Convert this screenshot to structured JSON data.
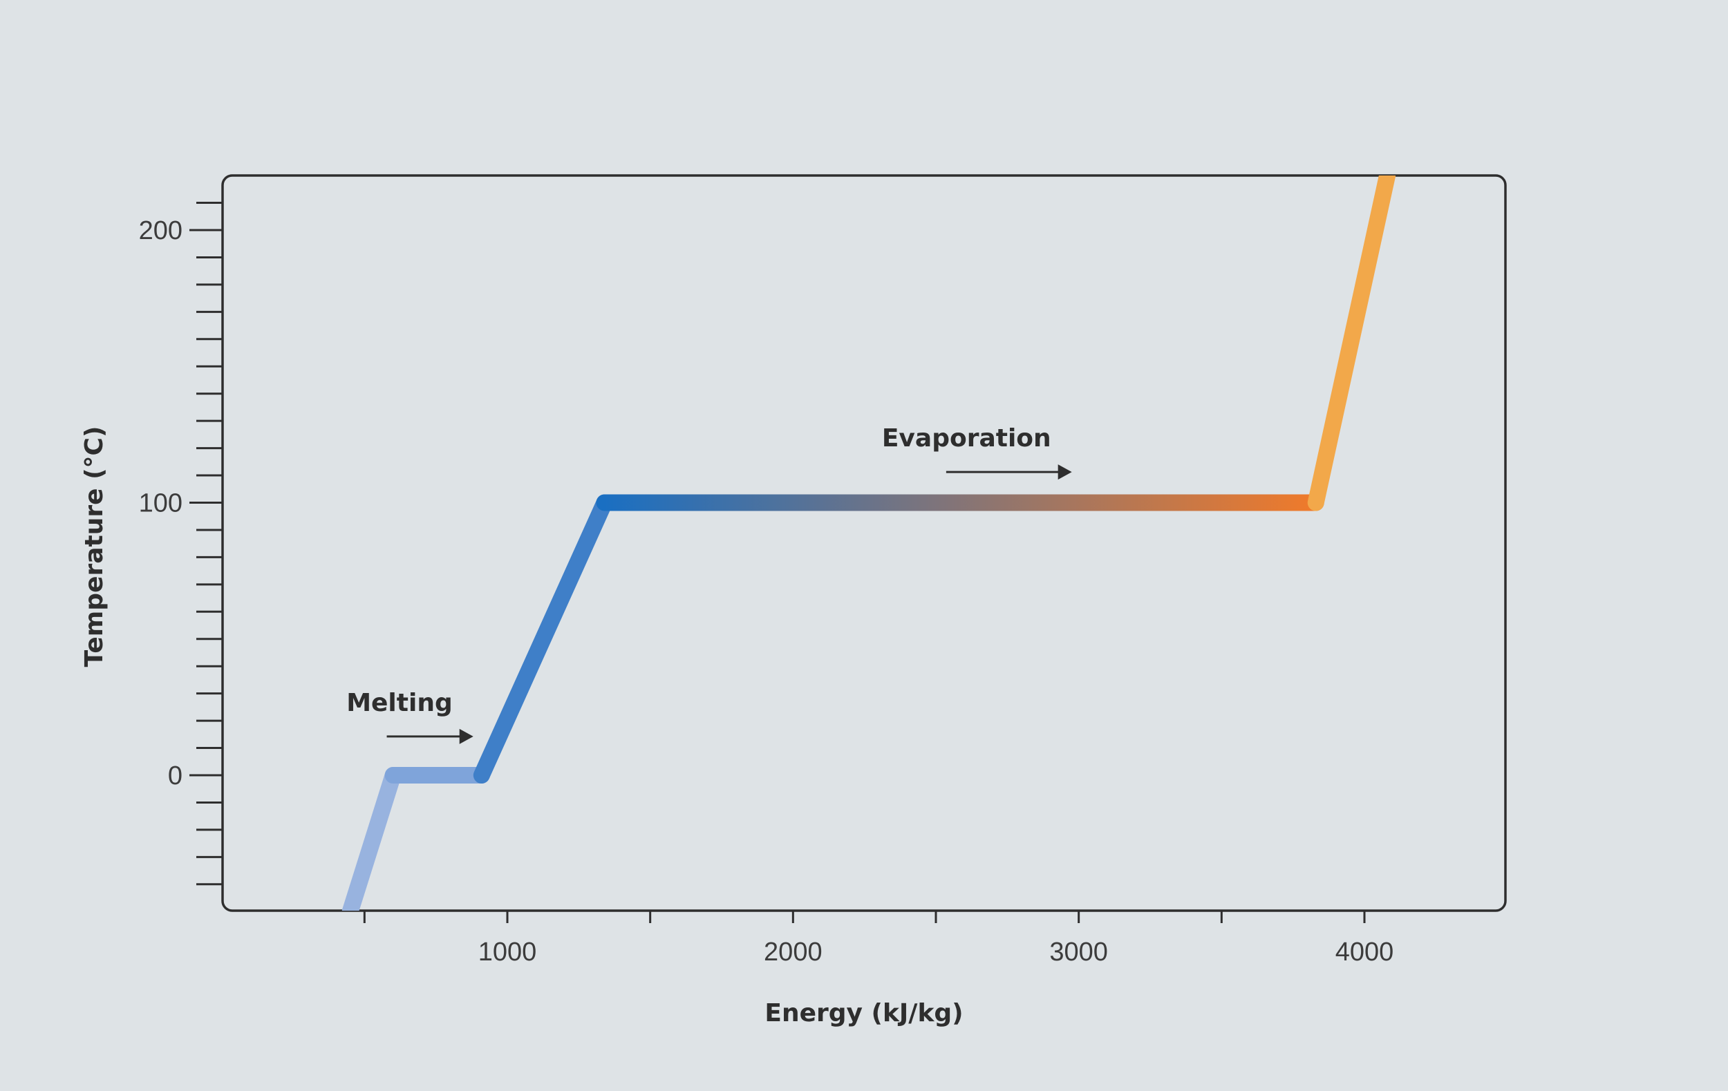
{
  "chart_data": {
    "type": "line",
    "title": "",
    "xlabel": "Energy (kJ/kg)",
    "ylabel": "Temperature (°C)",
    "xlim": [
      0,
      4500
    ],
    "ylim": [
      -50,
      220
    ],
    "x_ticks": [
      1000,
      2000,
      3000,
      4000
    ],
    "x_tick_labels": [
      "1000",
      "2000",
      "3000",
      "4000"
    ],
    "x_minor_ticks": [
      500,
      1500,
      2500,
      3500
    ],
    "y_ticks": [
      0,
      100,
      200
    ],
    "y_tick_labels": [
      "0",
      "100",
      "200"
    ],
    "y_minor_step": 10,
    "grid": false,
    "legend": "none",
    "series": [
      {
        "x": [
          450,
          600,
          910,
          1340,
          3830,
          4080
        ],
        "y": [
          -50,
          0,
          0,
          100,
          100,
          220
        ]
      }
    ],
    "segments": [
      {
        "x": [
          450,
          600
        ],
        "y": [
          -50,
          0
        ],
        "color": "#98b3df"
      },
      {
        "x": [
          600,
          910
        ],
        "y": [
          0,
          0
        ],
        "color": "#7fa4da"
      },
      {
        "x": [
          910,
          1340
        ],
        "y": [
          0,
          100
        ],
        "color": "#3f7fc8"
      },
      {
        "x": [
          1340,
          3830
        ],
        "y": [
          100,
          100
        ],
        "color_start": "#1a6fc2",
        "color_end": "#f07a2a"
      },
      {
        "x": [
          3830,
          4080
        ],
        "y": [
          100,
          220
        ],
        "color": "#f2a84a"
      }
    ],
    "annotations": [
      {
        "text": "Melting",
        "x": 905,
        "y": 15
      },
      {
        "text": "Evaporation",
        "x": 3000,
        "y": 112
      }
    ]
  }
}
